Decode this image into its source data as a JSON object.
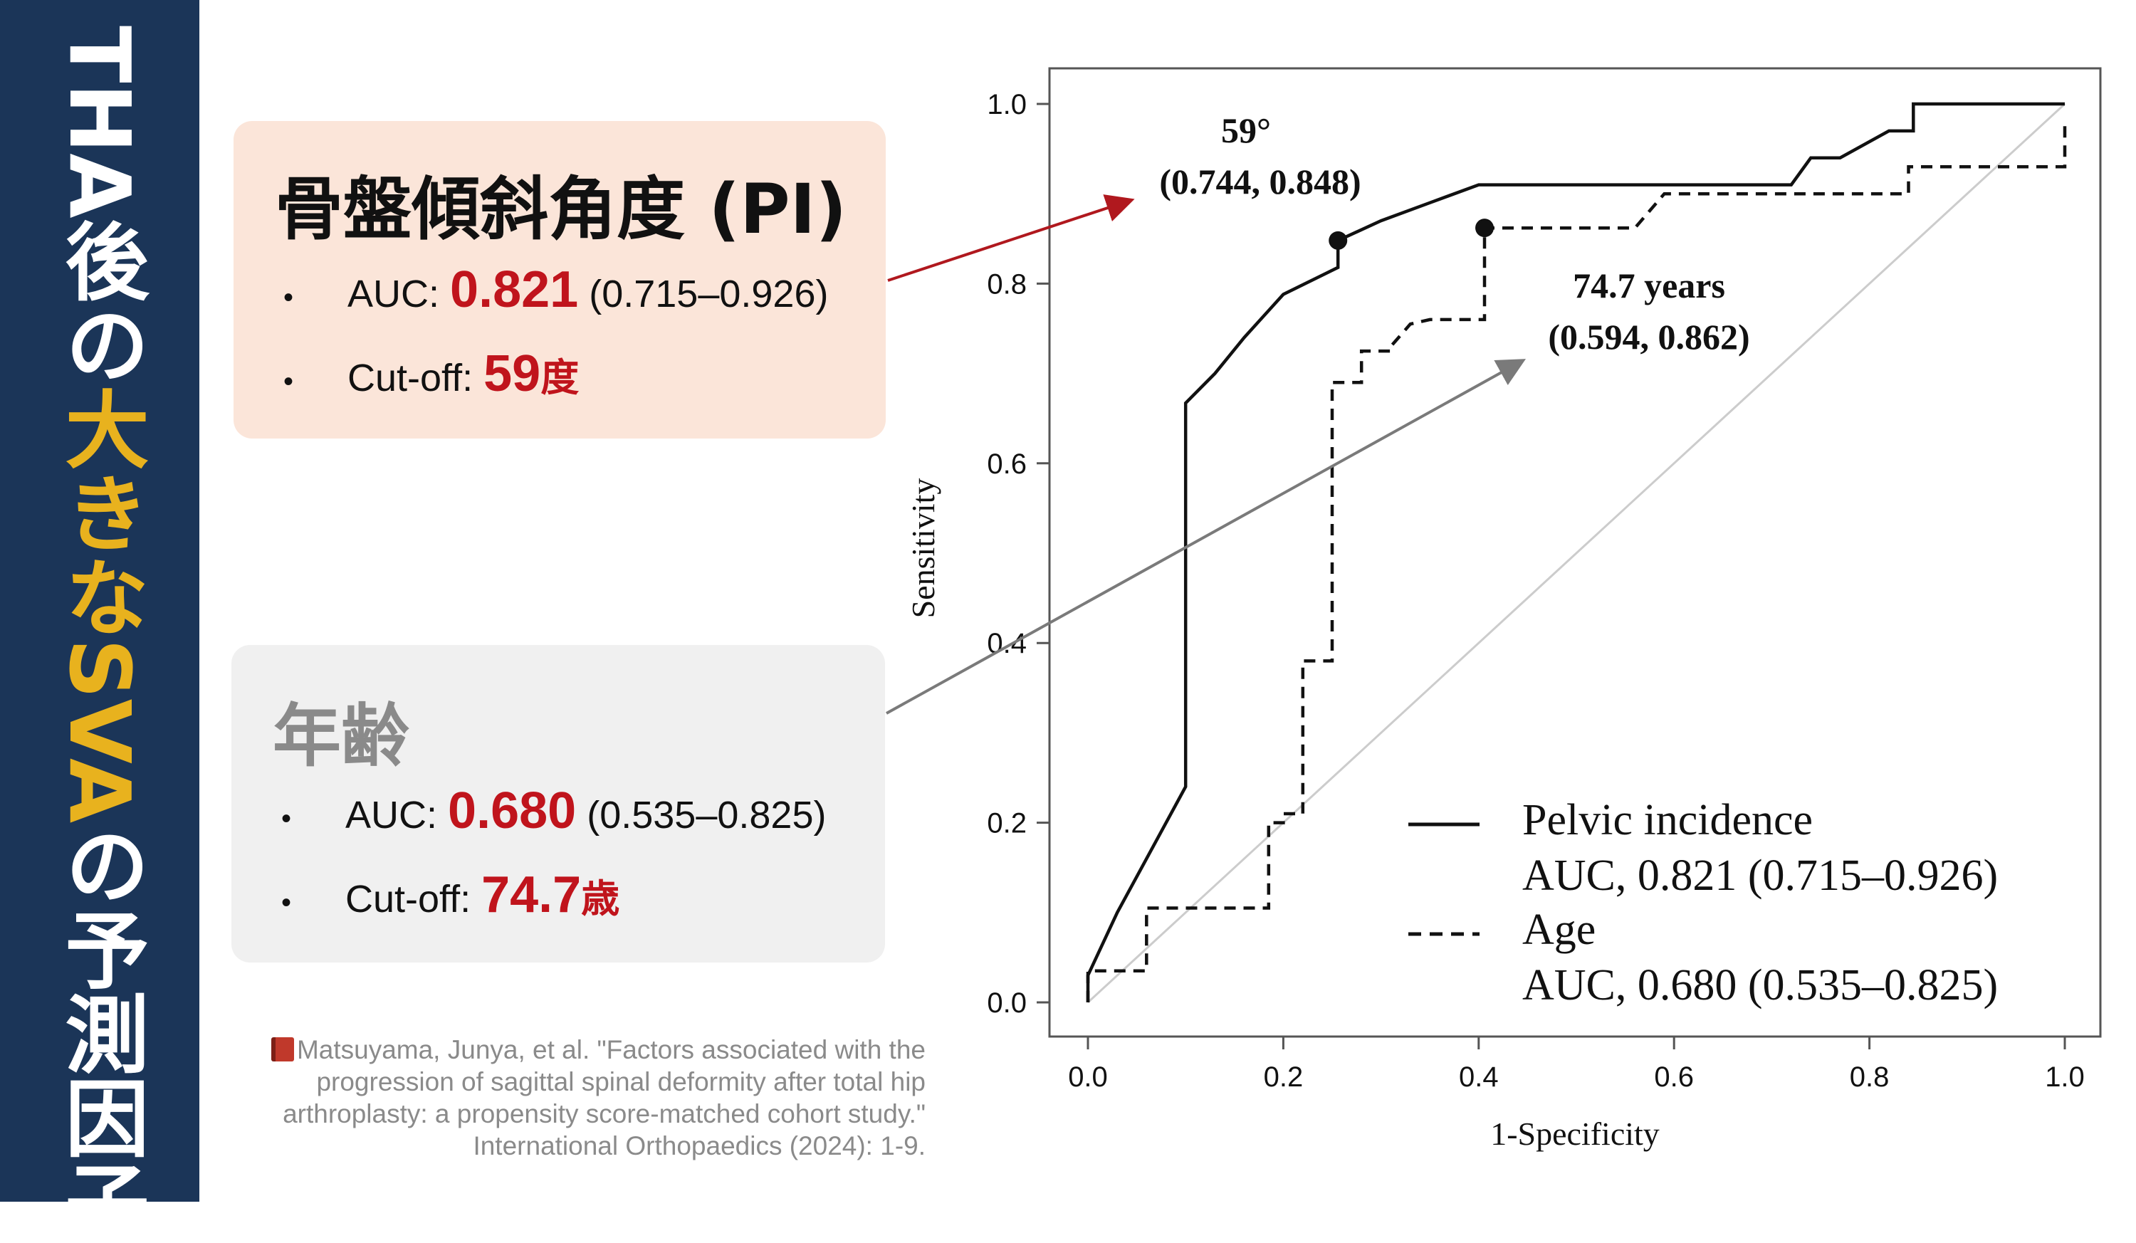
{
  "banner": {
    "part1": "THA後の",
    "highlight": "大きなSVA",
    "part2": "の予測因子"
  },
  "cards": {
    "pi": {
      "title": "骨盤傾斜角度 (PI)",
      "bullet": "•",
      "auc_label": "AUC: ",
      "auc_value": "0.821",
      "auc_ci": " (0.715–0.926)",
      "cutoff_label": "Cut-off: ",
      "cutoff_value": "59",
      "cutoff_unit": "度"
    },
    "age": {
      "title": "年齢",
      "bullet": "•",
      "auc_label": "AUC: ",
      "auc_value": "0.680",
      "auc_ci": " (0.535–0.825)",
      "cutoff_label": "Cut-off: ",
      "cutoff_value": "74.7",
      "cutoff_unit": "歳"
    }
  },
  "reference": {
    "line1": "Matsuyama, Junya, et al. \"Factors associated with the",
    "line2": "progression of sagittal spinal deformity after total hip",
    "line3": "arthroplasty: a propensity score-matched cohort study.\"",
    "line4": "International Orthopaedics (2024): 1-9."
  },
  "colors": {
    "banner_bg": "#1b3558",
    "highlight": "#e8b21e",
    "accent_red": "#c0141c",
    "pi_card_bg": "#fbe5d9",
    "age_card_bg": "#f0f0f0",
    "arrow_red": "#b0181e",
    "arrow_gray": "#7a7a7a"
  },
  "chart_data": {
    "type": "line",
    "xlabel": "1-Specificity",
    "ylabel": "Sensitivity",
    "xlim": [
      0,
      1
    ],
    "ylim": [
      0,
      1
    ],
    "xticks": [
      "0.0",
      "0.2",
      "0.4",
      "0.6",
      "0.8",
      "1.0"
    ],
    "yticks": [
      "0.0",
      "0.2",
      "0.4",
      "0.6",
      "0.8",
      "1.0"
    ],
    "diagonal_reference": true,
    "series": [
      {
        "name": "Pelvic incidence",
        "auc_text": "AUC, 0.821 (0.715–0.926)",
        "style": "solid",
        "x": [
          0,
          0,
          0.03,
          0.1,
          0.1,
          0.13,
          0.16,
          0.2,
          0.256,
          0.256,
          0.3,
          0.35,
          0.4,
          0.72,
          0.74,
          0.77,
          0.82,
          0.845,
          0.845,
          1.0,
          1.0
        ],
        "y": [
          0,
          0.03,
          0.1,
          0.24,
          0.667,
          0.7,
          0.74,
          0.788,
          0.818,
          0.848,
          0.87,
          0.89,
          0.91,
          0.91,
          0.94,
          0.94,
          0.97,
          0.97,
          1.0,
          1.0,
          1.0
        ]
      },
      {
        "name": "Age",
        "auc_text": "AUC, 0.680 (0.535–0.825)",
        "style": "dashed",
        "x": [
          0,
          0,
          0.06,
          0.06,
          0.185,
          0.185,
          0.2,
          0.2,
          0.22,
          0.22,
          0.25,
          0.25,
          0.28,
          0.28,
          0.31,
          0.31,
          0.33,
          0.35,
          0.406,
          0.406,
          0.56,
          0.59,
          0.84,
          0.84,
          1.0,
          1.0
        ],
        "y": [
          0,
          0.035,
          0.035,
          0.105,
          0.105,
          0.2,
          0.2,
          0.21,
          0.21,
          0.38,
          0.38,
          0.69,
          0.69,
          0.725,
          0.725,
          0.73,
          0.755,
          0.76,
          0.76,
          0.862,
          0.862,
          0.9,
          0.9,
          0.93,
          0.93,
          0.98
        ]
      }
    ],
    "cutoffs": [
      {
        "series": "Pelvic incidence",
        "x": 0.256,
        "y": 0.848,
        "label_line1": "59°",
        "label_line2": "(0.744, 0.848)"
      },
      {
        "series": "Age",
        "x": 0.406,
        "y": 0.862,
        "label_line1": "74.7 years",
        "label_line2": "(0.594, 0.862)"
      }
    ]
  }
}
